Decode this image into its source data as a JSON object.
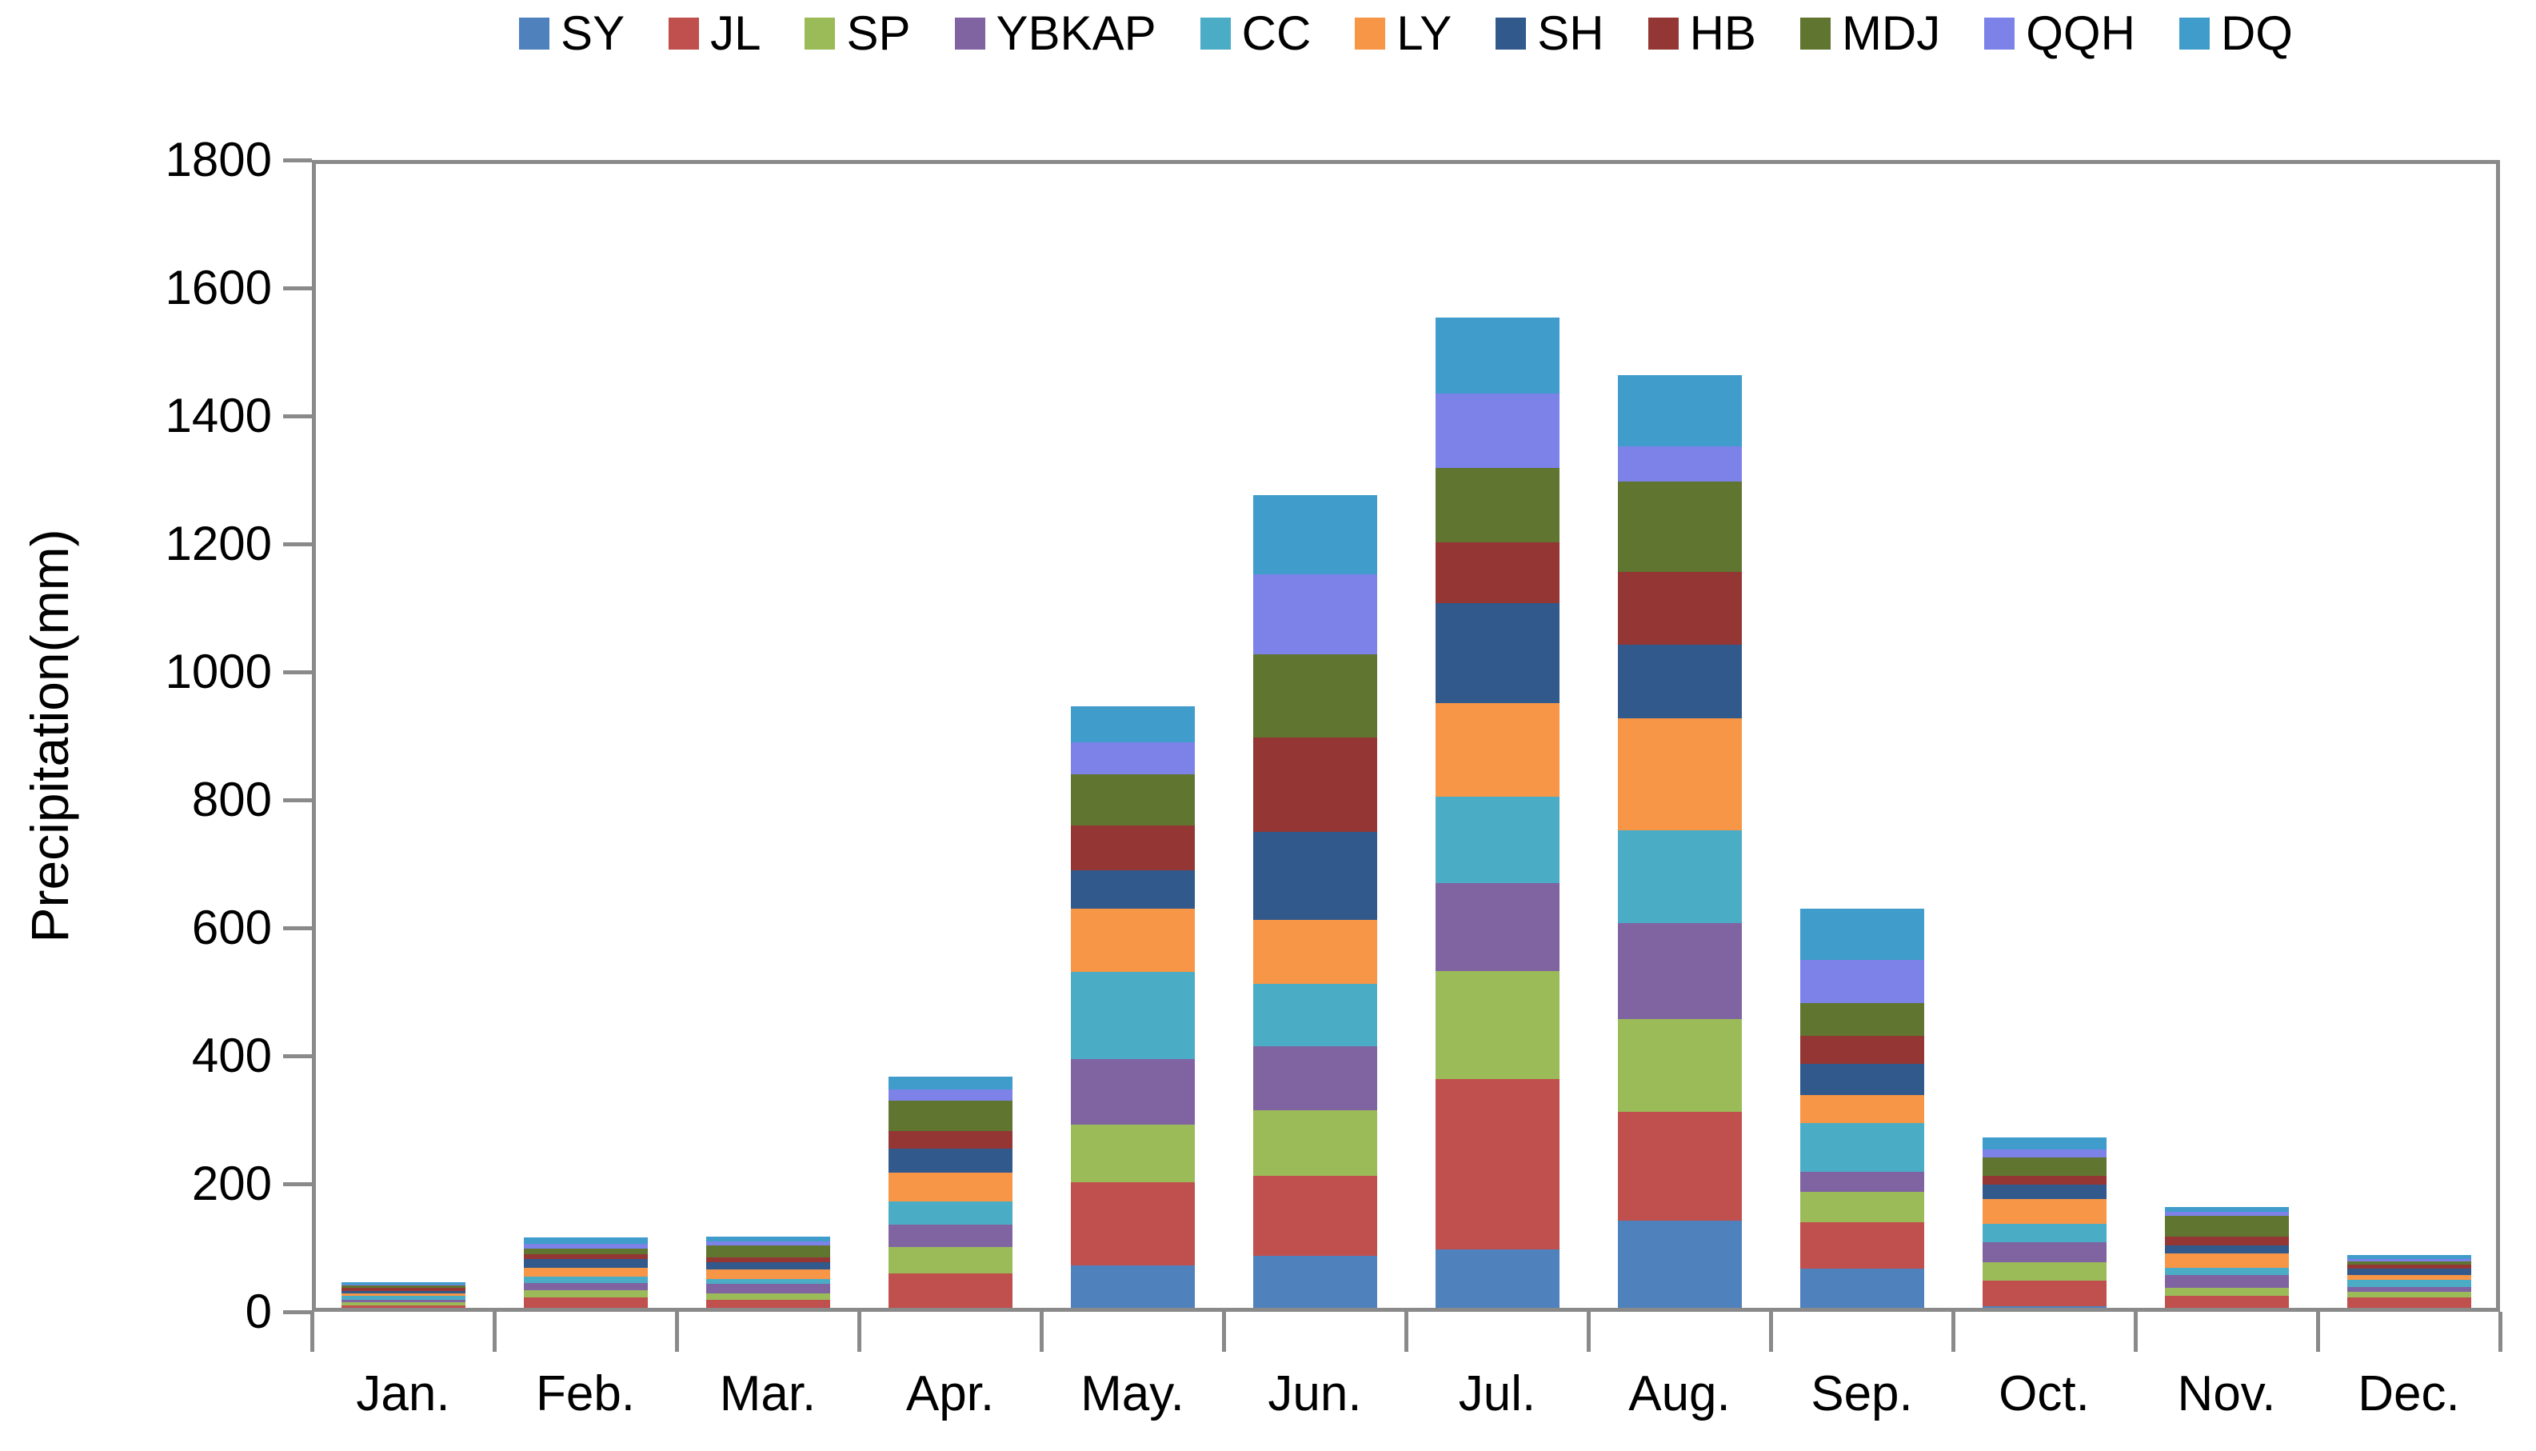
{
  "chart_data": {
    "type": "bar",
    "stacked": true,
    "title": "",
    "xlabel": "",
    "ylabel": "Precipitation(mm)",
    "ylim": [
      0,
      1800
    ],
    "ytick_step": 200,
    "yticks": [
      "1800",
      "1600",
      "1400",
      "1200",
      "1000",
      "800",
      "600",
      "400",
      "200",
      "0"
    ],
    "grid": false,
    "legend_position": "top",
    "categories": [
      "Jan.",
      "Feb.",
      "Mar.",
      "Apr.",
      "May.",
      "Jun.",
      "Jul.",
      "Aug.",
      "Sep.",
      "Oct.",
      "Nov.",
      "Dec."
    ],
    "series": [
      {
        "name": "SY",
        "color": "#4F81BD",
        "values": [
          2,
          5,
          4,
          6,
          73,
          88,
          97,
          142,
          68,
          9,
          4,
          5
        ]
      },
      {
        "name": "JL",
        "color": "#C0504D",
        "values": [
          8,
          17,
          15,
          54,
          129,
          124,
          267,
          170,
          72,
          40,
          21,
          18
        ]
      },
      {
        "name": "SP",
        "color": "#9BBB59",
        "values": [
          5,
          12,
          10,
          41,
          90,
          103,
          169,
          145,
          47,
          28,
          12,
          8
        ]
      },
      {
        "name": "YBKAP",
        "color": "#8064A2",
        "values": [
          4,
          11,
          15,
          35,
          103,
          100,
          137,
          150,
          32,
          32,
          20,
          8
        ]
      },
      {
        "name": "CC",
        "color": "#4BACC6",
        "values": [
          6,
          10,
          7,
          36,
          136,
          97,
          135,
          145,
          76,
          28,
          12,
          11
        ]
      },
      {
        "name": "LY",
        "color": "#F79646",
        "values": [
          4,
          14,
          15,
          45,
          99,
          101,
          146,
          176,
          44,
          39,
          22,
          8
        ]
      },
      {
        "name": "SH",
        "color": "#31598C",
        "values": [
          3,
          13,
          12,
          38,
          60,
          137,
          157,
          114,
          49,
          23,
          13,
          9
        ]
      },
      {
        "name": "HB",
        "color": "#943634",
        "values": [
          5,
          8,
          7,
          28,
          70,
          148,
          95,
          114,
          43,
          13,
          14,
          7
        ]
      },
      {
        "name": "MDJ",
        "color": "#5F7530",
        "values": [
          4,
          9,
          19,
          47,
          80,
          130,
          116,
          142,
          52,
          29,
          32,
          5
        ]
      },
      {
        "name": "QQH",
        "color": "#7C82E8",
        "values": [
          2,
          7,
          6,
          17,
          50,
          124,
          116,
          54,
          67,
          13,
          6,
          4
        ]
      },
      {
        "name": "DQ",
        "color": "#3F9CCB",
        "values": [
          3,
          10,
          8,
          20,
          56,
          124,
          119,
          112,
          80,
          18,
          8,
          6
        ]
      }
    ]
  },
  "style": {
    "axis_color": "#8A8A8A",
    "text_color": "#000000",
    "background": "#FFFFFF"
  }
}
